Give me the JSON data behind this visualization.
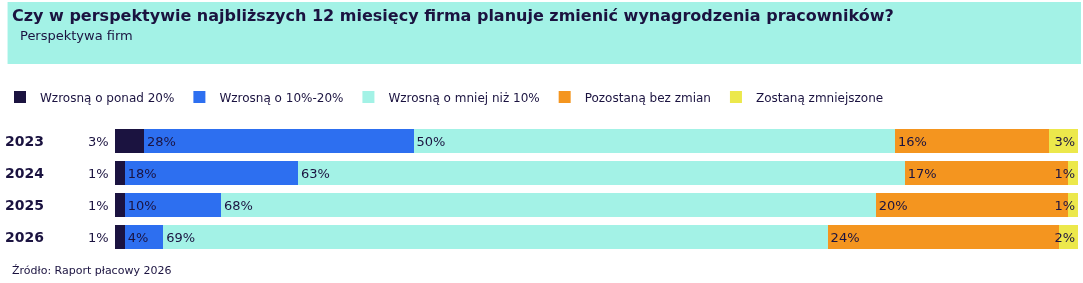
{
  "chart_data": {
    "type": "bar",
    "orientation": "horizontal",
    "stacked": true,
    "title": "Czy w perspektywie najbliższych 12 miesięcy firma planuje zmienić wynagrodzenia pracowników?",
    "subtitle": "Perspektywa firm",
    "categories": [
      "2023",
      "2024",
      "2025",
      "2026"
    ],
    "series": [
      {
        "name": "Wzrosną o ponad 20%",
        "color": "#1b1340",
        "values": [
          3,
          1,
          1,
          1
        ],
        "value_labels": [
          "3%",
          "1%",
          "1%",
          "1%"
        ]
      },
      {
        "name": "Wzrosną o 10%-20%",
        "color": "#2d6ff0",
        "values": [
          28,
          18,
          10,
          4
        ],
        "value_labels": [
          "28%",
          "18%",
          "10%",
          "4%"
        ]
      },
      {
        "name": "Wzrosną o mniej niż 10%",
        "color": "#a3f2e6",
        "values": [
          50,
          63,
          68,
          69
        ],
        "value_labels": [
          "50%",
          "63%",
          "68%",
          "69%"
        ]
      },
      {
        "name": "Pozostaną bez zmian",
        "color": "#f4951f",
        "values": [
          16,
          17,
          20,
          24
        ],
        "value_labels": [
          "16%",
          "17%",
          "20%",
          "24%"
        ]
      },
      {
        "name": "Zostaną zmniejszone",
        "color": "#ece84b",
        "values": [
          3,
          1,
          1,
          2
        ],
        "value_labels": [
          "3%",
          "1%",
          "1%",
          "2%"
        ]
      }
    ],
    "tick_labels": "y",
    "legend": "top left",
    "annotations": [
      "Źródło: Raport płacowy 2026"
    ]
  }
}
